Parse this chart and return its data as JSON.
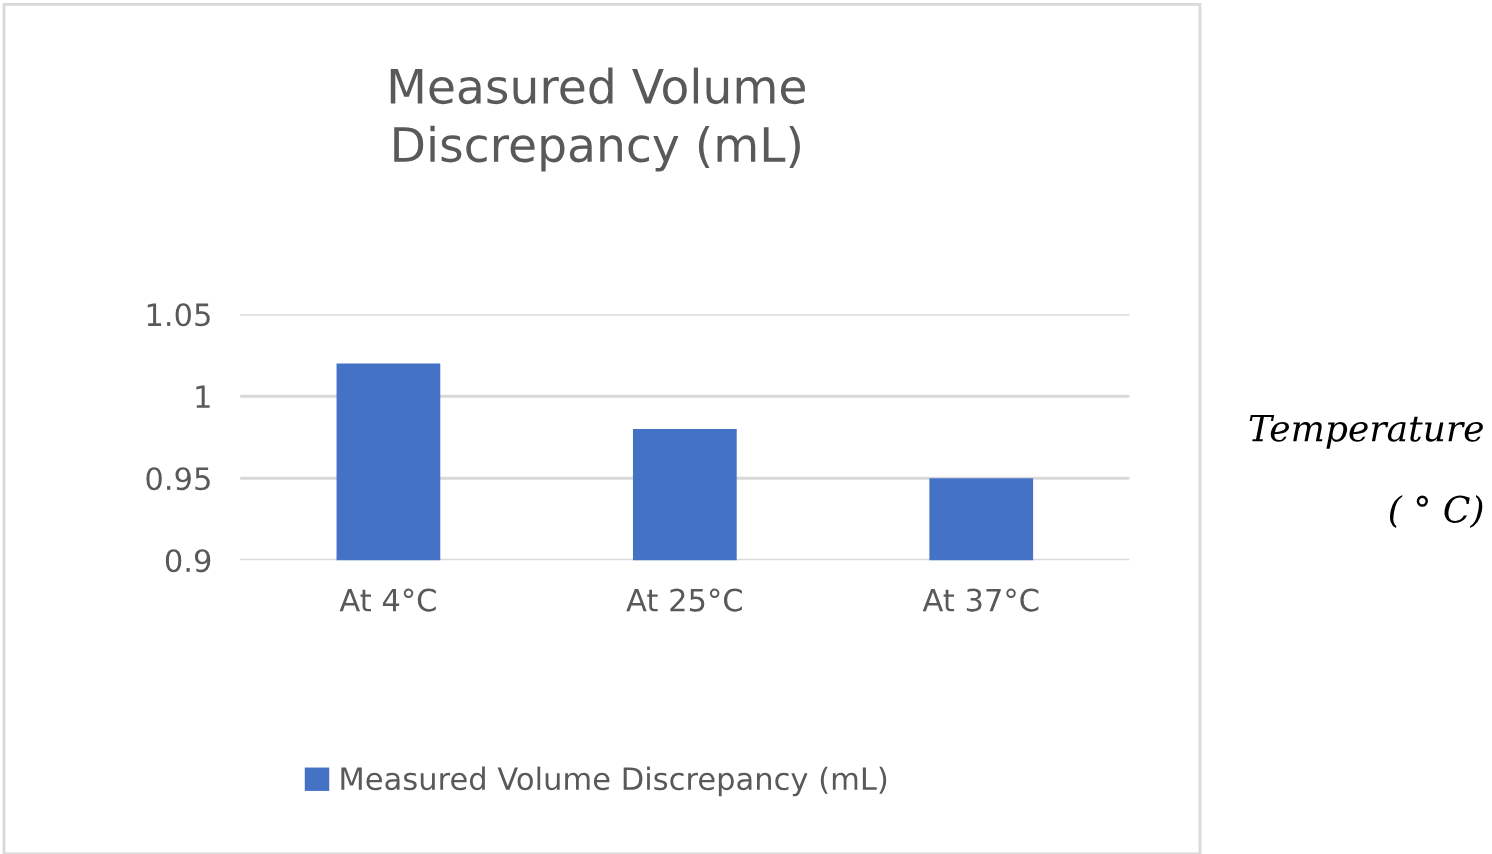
{
  "chart_data": {
    "type": "bar",
    "title": "Measured Volume\nDiscrepancy (mL)",
    "categories": [
      "At 4°C",
      "At 25°C",
      "At 37°C"
    ],
    "series": [
      {
        "name": "Measured Volume Discrepancy (mL)",
        "color": "#4472c4",
        "values": [
          1.02,
          0.98,
          0.95
        ]
      }
    ],
    "ylim": [
      0.9,
      1.05
    ],
    "yticks": [
      0.9,
      0.95,
      1,
      1.05
    ],
    "grid": "y",
    "legend": "bottom",
    "annotations": [
      "Temperature",
      "( ° C)"
    ]
  }
}
